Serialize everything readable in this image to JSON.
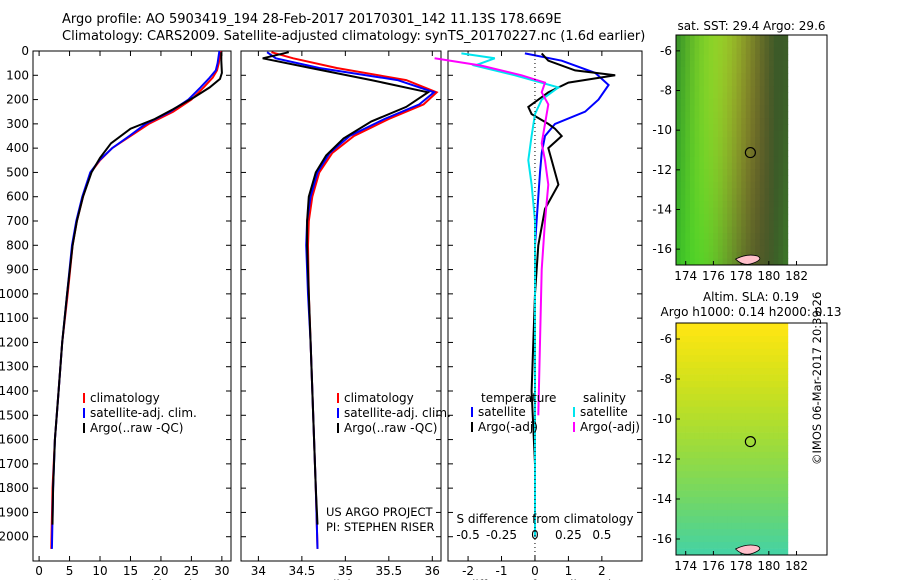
{
  "header": {
    "line1": "Argo profile: AO 5903419_194 28-Feb-2017 20170301_142 11.13S 178.669E",
    "line2": "Climatology: CARS2009. Satellite-adjusted climatology: synTS_20170227.nc (1.6d earlier)"
  },
  "credits": {
    "project": "US ARGO PROJECT",
    "pi": "PI: STEPHEN RISER",
    "stamp": "©IMOS 06-Mar-2017 20:39:26"
  },
  "colors": {
    "climatology": "#ff0000",
    "satellite": "#0000ff",
    "argo": "#000000",
    "satellite_s": "#00e5ee",
    "argo_s": "#ff00ff"
  },
  "chart_data": [
    {
      "type": "line",
      "id": "temperature",
      "xlabel": "temperature (deg C)",
      "ylabel": "",
      "xlim": [
        -1,
        31.5
      ],
      "ylim": [
        2100,
        0
      ],
      "xticks": [
        0,
        5,
        10,
        15,
        20,
        25,
        30
      ],
      "yticks": [
        0,
        100,
        200,
        300,
        400,
        500,
        600,
        700,
        800,
        900,
        1000,
        1100,
        1200,
        1300,
        1400,
        1500,
        1600,
        1700,
        1800,
        1900,
        2000
      ],
      "legend": [
        "climatology",
        "satellite-adj. clim.",
        "Argo(..raw -QC)"
      ],
      "series": [
        {
          "name": "climatology",
          "color": "#ff0000",
          "x": [
            29.8,
            29.5,
            29.2,
            28.5,
            27,
            25,
            22,
            18,
            15,
            12,
            10,
            8.5,
            7.2,
            6.2,
            5.5,
            4.7,
            3.8,
            3.2,
            2.6,
            2.2,
            2.0
          ],
          "y": [
            0,
            50,
            80,
            110,
            150,
            200,
            250,
            300,
            350,
            400,
            450,
            500,
            600,
            700,
            800,
            1000,
            1200,
            1400,
            1600,
            1800,
            2050
          ]
        },
        {
          "name": "satellite-adj. clim.",
          "color": "#0000ff",
          "x": [
            29.6,
            29.3,
            29,
            28,
            26.5,
            24.5,
            21.5,
            17.5,
            14.8,
            12,
            9.9,
            8.4,
            7.1,
            6.1,
            5.4,
            4.6,
            3.8,
            3.2,
            2.6,
            2.3,
            2.1
          ],
          "y": [
            0,
            50,
            80,
            110,
            150,
            200,
            250,
            300,
            350,
            400,
            450,
            500,
            600,
            700,
            800,
            1000,
            1200,
            1400,
            1600,
            1800,
            2050
          ]
        },
        {
          "name": "Argo(..raw -QC)",
          "color": "#000000",
          "x": [
            29.9,
            29.9,
            30.0,
            29.7,
            28,
            25.5,
            22,
            19,
            15,
            11.8,
            10,
            8.6,
            7.2,
            6.2,
            5.5,
            4.6,
            3.8,
            3.2,
            2.6,
            2.3,
            2.2
          ],
          "y": [
            5,
            40,
            90,
            115,
            150,
            190,
            240,
            280,
            320,
            380,
            440,
            500,
            600,
            700,
            800,
            1000,
            1200,
            1400,
            1600,
            1800,
            1950
          ]
        }
      ]
    },
    {
      "type": "line",
      "id": "salinity",
      "xlabel": "salinity",
      "ylabel": "",
      "xlim": [
        33.8,
        36.1
      ],
      "ylim": [
        2100,
        0
      ],
      "xticks": [
        34,
        34.5,
        35,
        35.5,
        36
      ],
      "legend": [
        "climatology",
        "satellite-adj. clim.",
        "Argo(..raw -QC)"
      ],
      "series": [
        {
          "name": "climatology",
          "color": "#ff0000",
          "x": [
            34.15,
            34.4,
            34.9,
            35.7,
            36.05,
            35.9,
            35.5,
            35.1,
            34.85,
            34.7,
            34.62,
            34.58,
            34.57,
            34.58,
            34.6,
            34.63,
            34.66,
            34.68
          ],
          "y": [
            5,
            30,
            70,
            120,
            170,
            220,
            280,
            350,
            420,
            500,
            600,
            700,
            800,
            1000,
            1200,
            1500,
            1800,
            2050
          ]
        },
        {
          "name": "satellite-adj. clim.",
          "color": "#0000ff",
          "x": [
            34.1,
            34.2,
            34.7,
            35.6,
            36.02,
            35.85,
            35.45,
            35.05,
            34.82,
            34.68,
            34.6,
            34.56,
            34.55,
            34.57,
            34.6,
            34.63,
            34.66,
            34.68
          ],
          "y": [
            5,
            30,
            70,
            120,
            170,
            220,
            280,
            350,
            420,
            500,
            600,
            700,
            800,
            1000,
            1200,
            1500,
            1800,
            2050
          ]
        },
        {
          "name": "Argo(..raw -QC)",
          "color": "#000000",
          "x": [
            34.35,
            34.05,
            34.6,
            35.3,
            35.95,
            35.7,
            35.3,
            34.98,
            34.78,
            34.66,
            34.58,
            34.56,
            34.56,
            34.58,
            34.6,
            34.63,
            34.66,
            34.68
          ],
          "y": [
            5,
            30,
            70,
            120,
            170,
            230,
            290,
            360,
            430,
            500,
            600,
            700,
            800,
            1000,
            1200,
            1500,
            1800,
            1950
          ]
        }
      ]
    },
    {
      "type": "line",
      "id": "differences",
      "xlabel": "T difference from climatology",
      "x2label": "S difference from climatology",
      "xlim": [
        -2.6,
        3.2
      ],
      "ylim": [
        2100,
        0
      ],
      "xticks": [
        -2,
        -1,
        0,
        1,
        2
      ],
      "x2ticks": [
        "-0.5",
        "-0.25",
        "0",
        "0.25",
        "0.5"
      ],
      "legend_t": {
        "title": "temperature",
        "items": [
          "satellite",
          "Argo(-adj)"
        ]
      },
      "legend_s": {
        "title": "salinity",
        "items": [
          "satellite",
          "Argo(-adj)"
        ]
      },
      "series": [
        {
          "name": "T satellite",
          "color": "#0000ff",
          "x": [
            -0.3,
            0.8,
            1.8,
            2.2,
            1.9,
            1.5,
            0.6,
            0.3,
            0.2,
            0.15,
            0.1,
            0.05,
            0.0,
            0.0,
            0.0,
            0.0,
            0.0
          ],
          "y": [
            10,
            40,
            90,
            140,
            200,
            250,
            300,
            350,
            420,
            500,
            600,
            700,
            800,
            1000,
            1300,
            1600,
            2000
          ]
        },
        {
          "name": "T Argo(-adj)",
          "color": "#000000",
          "x": [
            0.2,
            0.4,
            1.2,
            2.4,
            1.0,
            0.4,
            -0.2,
            -0.1,
            0.4,
            0.6,
            0.8,
            0.4,
            0.5,
            0.7,
            0.3,
            0.1,
            0.0,
            -0.1,
            0.0,
            0.0
          ],
          "y": [
            10,
            40,
            80,
            100,
            130,
            170,
            230,
            260,
            300,
            320,
            350,
            400,
            450,
            550,
            650,
            800,
            1000,
            1400,
            1700,
            2000
          ]
        },
        {
          "name": "S satellite",
          "color": "#00e5ee",
          "x": [
            -2.2,
            -1.2,
            -1.8,
            -0.6,
            0.7,
            0.2,
            0.0,
            -0.1,
            -0.2,
            -0.1,
            0.0,
            0.0,
            0.0,
            0.0,
            0.0
          ],
          "y": [
            10,
            30,
            60,
            100,
            150,
            200,
            260,
            350,
            450,
            550,
            700,
            900,
            1200,
            1600,
            2000
          ]
        },
        {
          "name": "S Argo(-adj)",
          "color": "#ff00ff",
          "x": [
            -3.0,
            -1.6,
            -0.4,
            0.3,
            0.2,
            0.4,
            0.3,
            0.2,
            0.3,
            0.4,
            0.3,
            0.2,
            0.15,
            0.1
          ],
          "y": [
            30,
            60,
            100,
            130,
            170,
            220,
            300,
            380,
            450,
            550,
            700,
            900,
            1200,
            1500
          ]
        }
      ]
    },
    {
      "type": "heatmap",
      "id": "sst-map",
      "title": "sat. SST: 29.4 Argo: 29.6",
      "xticks": [
        174,
        176,
        178,
        180,
        182
      ],
      "yticks": [
        -6,
        -8,
        -10,
        -12,
        -14,
        -16
      ],
      "xlim": [
        173.3,
        184.2
      ],
      "ylim": [
        -16.8,
        -5.2
      ],
      "argo_location": {
        "lon": 178.669,
        "lat": -11.13
      }
    },
    {
      "type": "heatmap",
      "id": "sla-map",
      "title": "Altim. SLA: 0.19",
      "subtitle": "Argo h1000: 0.14 h2000: 0.13",
      "xticks": [
        174,
        176,
        178,
        180,
        182
      ],
      "yticks": [
        -6,
        -8,
        -10,
        -12,
        -14,
        -16
      ],
      "xlim": [
        173.3,
        184.2
      ],
      "ylim": [
        -16.8,
        -5.2
      ],
      "argo_location": {
        "lon": 178.669,
        "lat": -11.13
      }
    }
  ]
}
